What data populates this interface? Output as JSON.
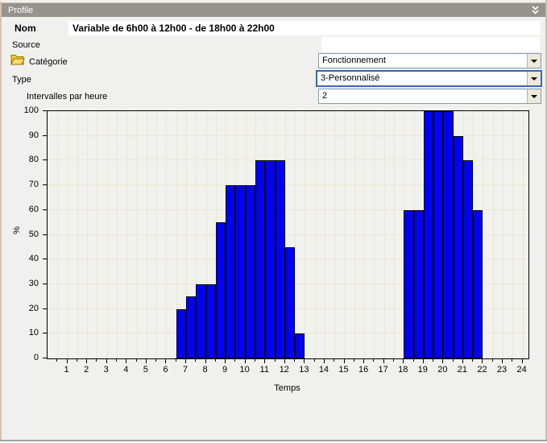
{
  "window": {
    "title": "Profile"
  },
  "form": {
    "nom": {
      "label": "Nom",
      "value": "Variable de 6h00 à 12h00 - de 18h00 à 22h00"
    },
    "source": {
      "label": "Source",
      "value": ""
    },
    "categorie": {
      "label": "Catégorie",
      "value": "Fonctionnement"
    },
    "type": {
      "label": "Type",
      "value": "3-Personnalisé"
    },
    "intervalles": {
      "label": "Intervalles par heure",
      "value": "2"
    }
  },
  "colors": {
    "header_bg": "#95938B",
    "bar": "#0202F0",
    "grid": "#E8E8D2",
    "plot_bg": "#F1F1EE",
    "focus_border": "#3C67B5"
  },
  "chart_data": {
    "type": "bar",
    "title": "",
    "xlabel": "Temps",
    "ylabel": "%",
    "xlim": [
      0,
      24.3
    ],
    "ylim": [
      0,
      100
    ],
    "x_ticks": [
      1,
      2,
      3,
      4,
      5,
      6,
      7,
      8,
      9,
      10,
      11,
      12,
      13,
      14,
      15,
      16,
      17,
      18,
      19,
      20,
      21,
      22,
      23,
      24
    ],
    "y_ticks": [
      0,
      10,
      20,
      30,
      40,
      50,
      60,
      70,
      80,
      90,
      100
    ],
    "grid": true,
    "grid_step_x": 0.5,
    "grid_step_y": 10,
    "interval_hours": 0.5,
    "bars": [
      {
        "start": 6.5,
        "end": 7.0,
        "value": 20
      },
      {
        "start": 7.0,
        "end": 7.5,
        "value": 25
      },
      {
        "start": 7.5,
        "end": 8.0,
        "value": 30
      },
      {
        "start": 8.0,
        "end": 8.5,
        "value": 30
      },
      {
        "start": 8.5,
        "end": 9.0,
        "value": 55
      },
      {
        "start": 9.0,
        "end": 9.5,
        "value": 70
      },
      {
        "start": 9.5,
        "end": 10.0,
        "value": 70
      },
      {
        "start": 10.0,
        "end": 10.5,
        "value": 70
      },
      {
        "start": 10.5,
        "end": 11.0,
        "value": 80
      },
      {
        "start": 11.0,
        "end": 11.5,
        "value": 80
      },
      {
        "start": 11.5,
        "end": 12.0,
        "value": 80
      },
      {
        "start": 12.0,
        "end": 12.5,
        "value": 45
      },
      {
        "start": 12.5,
        "end": 13.0,
        "value": 10
      },
      {
        "start": 18.0,
        "end": 18.5,
        "value": 60
      },
      {
        "start": 18.5,
        "end": 19.0,
        "value": 60
      },
      {
        "start": 19.0,
        "end": 19.5,
        "value": 100
      },
      {
        "start": 19.5,
        "end": 20.0,
        "value": 100
      },
      {
        "start": 20.0,
        "end": 20.5,
        "value": 100
      },
      {
        "start": 20.5,
        "end": 21.0,
        "value": 90
      },
      {
        "start": 21.0,
        "end": 21.5,
        "value": 80
      },
      {
        "start": 21.5,
        "end": 22.0,
        "value": 60
      }
    ]
  }
}
